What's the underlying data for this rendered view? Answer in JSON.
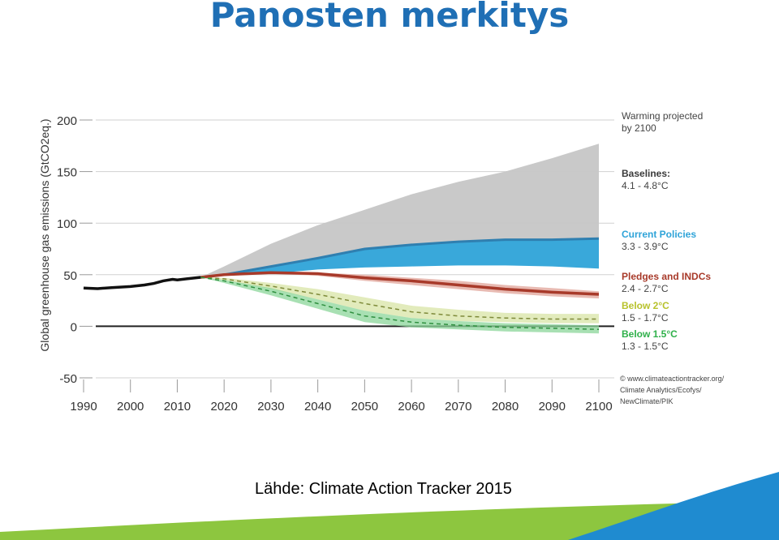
{
  "slide": {
    "title": "Panosten merkitys",
    "source": "Lähde: Climate Action Tracker 2015"
  },
  "colors": {
    "title": "#1f6fb5",
    "baseline": "#c6c6c6",
    "current_policies": "#2ea3d8",
    "current_policies_dark": "#2f7fb0",
    "pledges": "#a83a2a",
    "pledges_band": "#e7b6ae",
    "below_2c": "#d8e4a6",
    "below_2c_line": "#7e8a3a",
    "below_15c": "#8bd69a",
    "below_15c_line": "#2f8f3f",
    "historical": "#111111",
    "swoosh_green": "#8dc63f",
    "swoosh_blue": "#1f8bd0"
  },
  "chart_data": {
    "type": "area",
    "ylabel": "Global greenhouse gas emissions (GtCO2eq.)",
    "yticks": [
      200,
      150,
      100,
      50,
      0,
      -50
    ],
    "xticks": [
      1990,
      2000,
      2010,
      2020,
      2030,
      2040,
      2050,
      2060,
      2070,
      2080,
      2090,
      2100
    ],
    "xlim": [
      1990,
      2100
    ],
    "ylim": [
      -50,
      200
    ],
    "legend_heading": "Warming projected\nby 2100",
    "legend": [
      {
        "name": "Baselines:",
        "range": "4.1 - 4.8°C",
        "color": "#3a3a3a"
      },
      {
        "name": "Current Policies",
        "range": "3.3 - 3.9°C",
        "color": "#2ea3d8"
      },
      {
        "name": "Pledges and INDCs",
        "range": "2.4 - 2.7°C",
        "color": "#a83a2a"
      },
      {
        "name": "Below 2°C",
        "range": "1.5 - 1.7°C",
        "color": "#b8c22c"
      },
      {
        "name": "Below 1.5°C",
        "range": "1.3 - 1.5°C",
        "color": "#2fb04a"
      }
    ],
    "credits": [
      "© www.climateactiontracker.org/",
      "Climate Analytics/Ecofys/",
      "NewClimate/PIK"
    ],
    "historical": {
      "x": [
        1990,
        1993,
        1996,
        2000,
        2003,
        2005,
        2007,
        2009,
        2010,
        2012,
        2015
      ],
      "y": [
        37,
        36.5,
        37.5,
        38.5,
        40,
        41.5,
        44,
        45.5,
        45,
        46,
        47.5
      ]
    },
    "series": [
      {
        "name": "Baselines:",
        "x": [
          2015,
          2020,
          2030,
          2040,
          2050,
          2060,
          2070,
          2080,
          2090,
          2100
        ],
        "upper": [
          47.5,
          58,
          80,
          98,
          113,
          128,
          140,
          150,
          163,
          177
        ],
        "lower": [
          47.5,
          50,
          58,
          66,
          73,
          78,
          81,
          83,
          84,
          85
        ]
      },
      {
        "name": "Current Policies",
        "x": [
          2015,
          2020,
          2030,
          2040,
          2050,
          2060,
          2070,
          2080,
          2090,
          2100
        ],
        "upper": [
          47.5,
          50,
          58,
          66,
          75,
          79,
          82,
          84,
          84,
          85
        ],
        "lower": [
          47.5,
          49,
          51,
          55,
          57,
          58,
          59,
          59,
          58,
          56
        ]
      },
      {
        "name": "Pledges and INDCs",
        "x": [
          2015,
          2020,
          2030,
          2040,
          2050,
          2060,
          2070,
          2080,
          2090,
          2100
        ],
        "upper": [
          47.5,
          50,
          53,
          52,
          50,
          47,
          44,
          40,
          37,
          34
        ],
        "lower": [
          47.5,
          49,
          51,
          49,
          44,
          40,
          36,
          32,
          29,
          27
        ],
        "line": [
          47.5,
          50,
          52,
          51,
          47,
          44,
          40,
          36,
          33,
          31
        ]
      },
      {
        "name": "Below 2°C",
        "x": [
          2015,
          2020,
          2030,
          2040,
          2050,
          2060,
          2070,
          2080,
          2090,
          2100
        ],
        "upper": [
          47.5,
          47,
          42,
          36,
          28,
          20,
          16,
          13,
          12,
          12
        ],
        "lower": [
          47.5,
          45,
          36,
          26,
          15,
          8,
          5,
          4,
          3,
          3
        ],
        "line": [
          47.5,
          46,
          39,
          31,
          22,
          14,
          10,
          8,
          7,
          7
        ]
      },
      {
        "name": "Below 1.5°C",
        "x": [
          2015,
          2020,
          2030,
          2040,
          2050,
          2060,
          2070,
          2080,
          2090,
          2100
        ],
        "upper": [
          47.5,
          45,
          37,
          26,
          15,
          8,
          5,
          3,
          2,
          1
        ],
        "lower": [
          47.5,
          42,
          30,
          17,
          4,
          -1,
          -3,
          -5,
          -6,
          -7
        ],
        "line": [
          47.5,
          44,
          34,
          22,
          10,
          4,
          1,
          -1,
          -2,
          -3
        ]
      }
    ]
  }
}
